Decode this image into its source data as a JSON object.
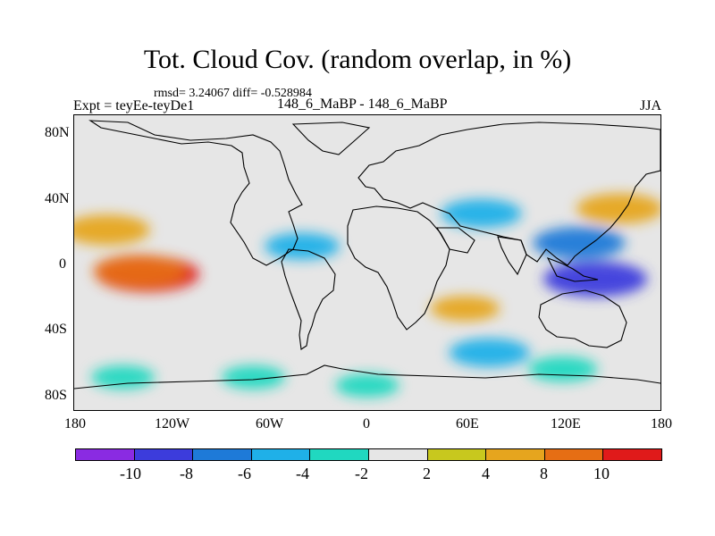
{
  "title": "Tot. Cloud Cov. (random overlap, in %)",
  "stats": "rmsd= 3.24067 diff= -0.528984",
  "experiment": "Expt = teyEe-teyDe1",
  "period": "148_6_MaBP - 148_6_MaBP",
  "season": "JJA",
  "axes": {
    "x_ticks": [
      "180",
      "120W",
      "60W",
      "0",
      "60E",
      "120E",
      "180"
    ],
    "y_ticks": [
      "80N",
      "40N",
      "0",
      "40S",
      "80S"
    ]
  },
  "colorbar": {
    "colors": [
      "#8a2be2",
      "#3c3cdc",
      "#1e7ad8",
      "#1fb0e8",
      "#20d8c0",
      "#e6e6e6",
      "#c8c81e",
      "#e6a51e",
      "#e66e14",
      "#e01a1a"
    ],
    "labels": [
      "-10",
      "-8",
      "-6",
      "-4",
      "-2",
      "2",
      "4",
      "8",
      "10"
    ]
  },
  "chart_data": {
    "type": "heatmap",
    "title": "Tot. Cloud Cov. (random overlap, in %)",
    "xlabel": "",
    "ylabel": "",
    "xlim": [
      -180,
      180
    ],
    "ylim": [
      -90,
      90
    ],
    "levels": [
      -10,
      -8,
      -6,
      -4,
      -2,
      2,
      4,
      8,
      10
    ],
    "blobs": [
      {
        "lon": -135,
        "lat": -7,
        "value": 10
      },
      {
        "lon": -140,
        "lat": -5,
        "value": 8
      },
      {
        "lon": -160,
        "lat": 20,
        "value": 7
      },
      {
        "lon": 155,
        "lat": 33,
        "value": 7
      },
      {
        "lon": 140,
        "lat": -10,
        "value": -10
      },
      {
        "lon": 130,
        "lat": 12,
        "value": -8
      },
      {
        "lon": 70,
        "lat": 30,
        "value": -6
      },
      {
        "lon": 60,
        "lat": -28,
        "value": 4
      },
      {
        "lon": 75,
        "lat": -55,
        "value": -6
      },
      {
        "lon": 120,
        "lat": -65,
        "value": -4
      },
      {
        "lon": -40,
        "lat": 10,
        "value": -5
      },
      {
        "lon": -70,
        "lat": -70,
        "value": -3
      },
      {
        "lon": 0,
        "lat": -75,
        "value": -3
      },
      {
        "lon": -150,
        "lat": -70,
        "value": -3
      }
    ]
  }
}
